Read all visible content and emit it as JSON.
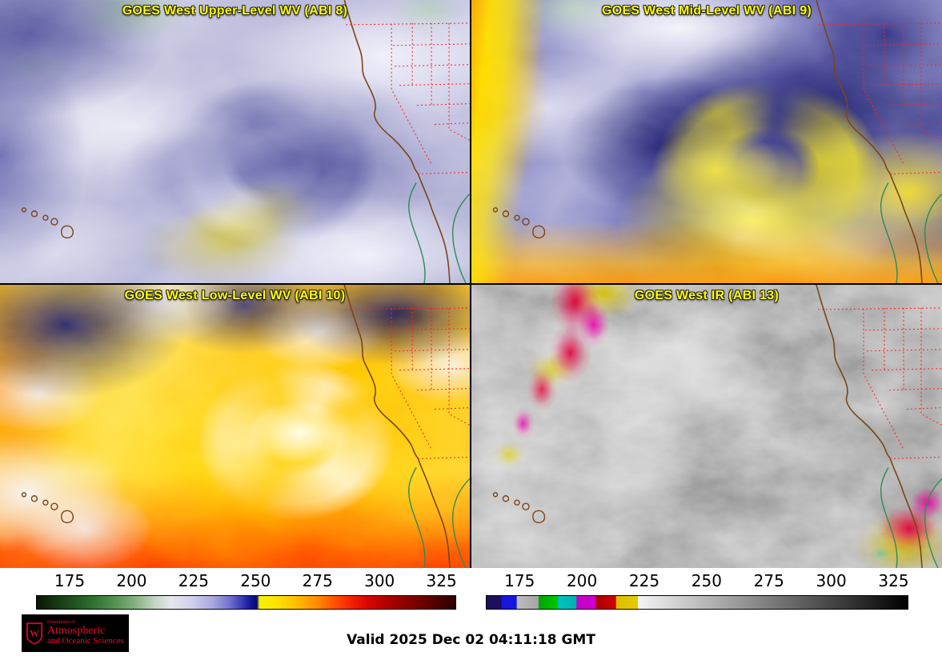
{
  "panels": [
    {
      "id": "abi8",
      "title": "GOES West Upper-Level WV (ABI 8)"
    },
    {
      "id": "abi9",
      "title": "GOES West Mid-Level WV (ABI 9)"
    },
    {
      "id": "abi10",
      "title": "GOES West Low-Level WV (ABI 10)"
    },
    {
      "id": "abi13",
      "title": "GOES West IR (ABI 13)"
    }
  ],
  "colorbars": [
    {
      "id": "water-vapor-temperature-scale",
      "ticks": [
        "175",
        "200",
        "225",
        "250",
        "275",
        "300",
        "325"
      ],
      "stops": [
        {
          "p": 0,
          "c": "#0b1505"
        },
        {
          "p": 4,
          "c": "#143311"
        },
        {
          "p": 9,
          "c": "#1f5420"
        },
        {
          "p": 14,
          "c": "#327534"
        },
        {
          "p": 19,
          "c": "#569455"
        },
        {
          "p": 24,
          "c": "#8ab486"
        },
        {
          "p": 28,
          "c": "#c2d4bf"
        },
        {
          "p": 32,
          "c": "#e6e6ee"
        },
        {
          "p": 37,
          "c": "#d0d0ec"
        },
        {
          "p": 42,
          "c": "#a8a8e0"
        },
        {
          "p": 46,
          "c": "#7272cf"
        },
        {
          "p": 49,
          "c": "#3b3bb4"
        },
        {
          "p": 51,
          "c": "#16169a"
        },
        {
          "p": 52.6,
          "c": "#08086e"
        },
        {
          "p": 53.2,
          "c": "#f2f200"
        },
        {
          "p": 57,
          "c": "#ffe400"
        },
        {
          "p": 62,
          "c": "#ffbe00"
        },
        {
          "p": 67,
          "c": "#ff8a00"
        },
        {
          "p": 71,
          "c": "#ff5400"
        },
        {
          "p": 75,
          "c": "#f32300"
        },
        {
          "p": 79,
          "c": "#d90500"
        },
        {
          "p": 84,
          "c": "#ad0000"
        },
        {
          "p": 90,
          "c": "#7d0000"
        },
        {
          "p": 95,
          "c": "#540000"
        },
        {
          "p": 100,
          "c": "#2b0000"
        }
      ]
    },
    {
      "id": "ir-temperature-scale",
      "ticks": [
        "175",
        "200",
        "225",
        "250",
        "275",
        "300",
        "325"
      ],
      "stops": [
        {
          "p": 0,
          "c": "#1d0e5e"
        },
        {
          "p": 3.5,
          "c": "#1d0e5e"
        },
        {
          "p": 3.6,
          "c": "#1616dc"
        },
        {
          "p": 7.1,
          "c": "#1616dc"
        },
        {
          "p": 7.2,
          "c": "#bdbdbd"
        },
        {
          "p": 12.3,
          "c": "#a5a5a5"
        },
        {
          "p": 12.4,
          "c": "#00a400"
        },
        {
          "p": 16.9,
          "c": "#00c800"
        },
        {
          "p": 17,
          "c": "#00c2c2"
        },
        {
          "p": 21.3,
          "c": "#00b0b0"
        },
        {
          "p": 21.4,
          "c": "#c400c4"
        },
        {
          "p": 25.9,
          "c": "#cc00cc"
        },
        {
          "p": 26,
          "c": "#a80000"
        },
        {
          "p": 30.7,
          "c": "#d00000"
        },
        {
          "p": 30.8,
          "c": "#ddbe00"
        },
        {
          "p": 35.9,
          "c": "#e6ca00"
        },
        {
          "p": 36,
          "c": "#f4f4f4"
        },
        {
          "p": 100,
          "c": "#000000"
        }
      ]
    }
  ],
  "footer": {
    "valid_time": "Valid 2025 Dec 02 04:11:18 GMT",
    "logo": {
      "monogram": "W",
      "dept": "Department of",
      "line1": "Atmospheric",
      "line2": "and Oceanic Sciences"
    }
  },
  "style": {
    "panel_title_color": "#ffff00",
    "state_border_color": "#ff2020",
    "coastline_color": "#7a4518",
    "coastline_green": "#2e8b57"
  }
}
